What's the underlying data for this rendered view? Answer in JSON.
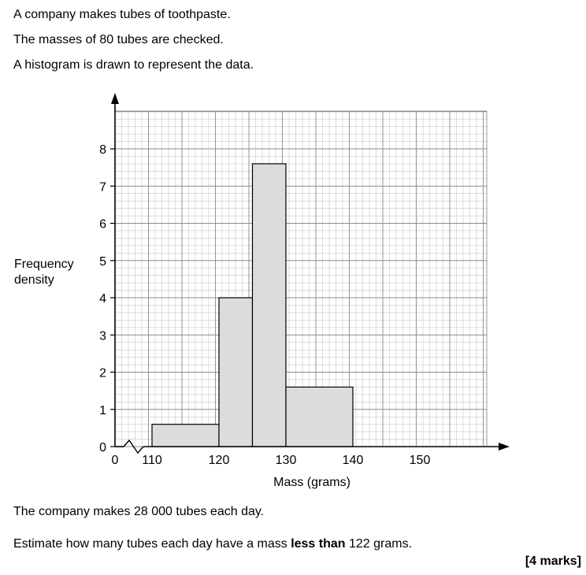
{
  "question": {
    "line1": "A company makes tubes of toothpaste.",
    "line2": "The masses of 80 tubes are checked.",
    "line3": "A histogram is drawn to represent the data.",
    "line4": "The company makes 28 000 tubes each day.",
    "line5_pre": "Estimate how many tubes each day have a mass ",
    "line5_bold": "less than",
    "line5_post": " 122 grams.",
    "marks": "[4 marks]"
  },
  "chart_data": {
    "type": "bar",
    "title": "",
    "xlabel": "Mass (grams)",
    "ylabel_line1": "Frequency",
    "ylabel_line2": "density",
    "x_origin_label": "0",
    "x_ticks": [
      "110",
      "120",
      "130",
      "140",
      "150"
    ],
    "y_ticks": [
      "0",
      "1",
      "2",
      "3",
      "4",
      "5",
      "6",
      "7",
      "8"
    ],
    "xlim": [
      110,
      160
    ],
    "ylim": [
      0,
      8
    ],
    "axis_break": true,
    "grid": true,
    "bars": [
      {
        "x_start": 110,
        "x_end": 120,
        "value": 0.6
      },
      {
        "x_start": 120,
        "x_end": 125,
        "value": 4.0
      },
      {
        "x_start": 125,
        "x_end": 130,
        "value": 7.6
      },
      {
        "x_start": 130,
        "x_end": 140,
        "value": 1.6
      }
    ],
    "bar_color": "#dcdcdc"
  }
}
